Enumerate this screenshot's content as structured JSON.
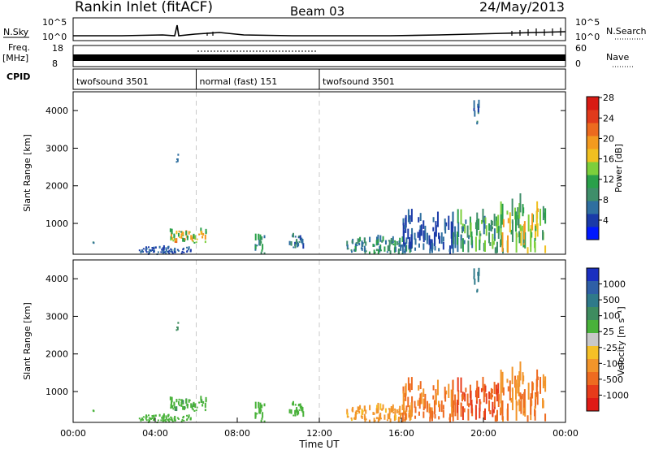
{
  "header": {
    "station": "Rankin Inlet (fitACF)",
    "beam": "Beam 03",
    "date": "24/May/2013"
  },
  "top_panel": {
    "nsky_label": "N.Sky",
    "nsearch_label": "N.Search",
    "left_ticks": [
      "10^5",
      "10^0"
    ],
    "right_ticks": [
      "10^5",
      "10^0"
    ]
  },
  "freq_panel": {
    "freq_label": "Freq.",
    "unit_label": "[MHz]",
    "left_ticks": [
      "18",
      "8"
    ],
    "nave_label": "Nave",
    "right_ticks": [
      "60",
      "0"
    ]
  },
  "cpid_panel": {
    "label": "CPID",
    "segments": [
      {
        "name": "twofsound 3501",
        "start": 0.0,
        "end": 6.0
      },
      {
        "name": "normal (fast) 151",
        "start": 6.0,
        "end": 12.0
      },
      {
        "name": "twofsound 3501",
        "start": 12.0,
        "end": 24.0
      }
    ]
  },
  "x_axis": {
    "title": "Time UT",
    "ticks": [
      "00:00",
      "04:00",
      "08:00",
      "12:00",
      "16:00",
      "20:00",
      "00:00"
    ]
  },
  "power_colorbar": {
    "title": "Power [dB]",
    "ticks": [
      "4",
      "8",
      "12",
      "16",
      "20",
      "24",
      "28"
    ],
    "colors": [
      "#0018ff",
      "#1a3aa8",
      "#2f6fa0",
      "#3f8e6a",
      "#2aa04a",
      "#7ccf3c",
      "#f0c020",
      "#f39a1f",
      "#ec6a1e",
      "#e13a1b",
      "#d81a14"
    ]
  },
  "velocity_colorbar": {
    "title": "Velocity [m s⁻¹]",
    "ticks": [
      "1000",
      "500",
      "100",
      "25",
      "-25",
      "-100",
      "-500",
      "-1000"
    ],
    "colors": [
      "#1a2fc0",
      "#2f5fa6",
      "#2f7a8a",
      "#3e8c5f",
      "#49b23a",
      "#c8c8c8",
      "#f5c027",
      "#f2952a",
      "#ee6b20",
      "#e73b1a",
      "#df1a16"
    ]
  },
  "chart_data": [
    {
      "type": "heatmap",
      "title": "",
      "xlabel": "",
      "ylabel": "Slant Range [km]",
      "xlim": [
        0,
        24
      ],
      "ylim": [
        180,
        4500
      ],
      "y_ticks": [
        1000,
        2000,
        3000,
        4000
      ],
      "colorbar_label": "Power [dB]",
      "colorbar_range": [
        0,
        32
      ],
      "dashed_vlines": [
        6,
        12
      ],
      "regions": [
        {
          "t0": 0.9,
          "t1": 1.0,
          "r0": 480,
          "r1": 560,
          "value": 8
        },
        {
          "t0": 3.2,
          "t1": 5.8,
          "r0": 180,
          "r1": 420,
          "value": 6
        },
        {
          "t0": 4.7,
          "t1": 6.5,
          "r0": 480,
          "r1": 900,
          "value": 18
        },
        {
          "t0": 5.0,
          "t1": 5.1,
          "r0": 2600,
          "r1": 2900,
          "value": 8
        },
        {
          "t0": 8.8,
          "t1": 9.3,
          "r0": 180,
          "r1": 800,
          "value": 10
        },
        {
          "t0": 10.5,
          "t1": 11.2,
          "r0": 300,
          "r1": 800,
          "value": 8
        },
        {
          "t0": 13.3,
          "t1": 16.5,
          "r0": 180,
          "r1": 700,
          "value": 10
        },
        {
          "t0": 16.0,
          "t1": 18.5,
          "r0": 180,
          "r1": 1500,
          "value": 6
        },
        {
          "t0": 18.5,
          "t1": 20.8,
          "r0": 180,
          "r1": 1400,
          "value": 12
        },
        {
          "t0": 20.8,
          "t1": 23.0,
          "r0": 200,
          "r1": 1800,
          "value": 16
        },
        {
          "t0": 19.5,
          "t1": 19.8,
          "r0": 3600,
          "r1": 4300,
          "value": 8
        }
      ]
    },
    {
      "type": "heatmap",
      "title": "",
      "xlabel": "Time UT",
      "ylabel": "Slant Range [km]",
      "xlim": [
        0,
        24
      ],
      "ylim": [
        180,
        4500
      ],
      "y_ticks": [
        1000,
        2000,
        3000,
        4000
      ],
      "colorbar_label": "Velocity [m s⁻¹]",
      "colorbar_range": [
        -1000,
        1000
      ],
      "dashed_vlines": [
        6,
        12
      ],
      "regions": [
        {
          "t0": 0.9,
          "t1": 1.0,
          "r0": 480,
          "r1": 560,
          "value": 50
        },
        {
          "t0": 3.2,
          "t1": 5.8,
          "r0": 180,
          "r1": 420,
          "value": 60
        },
        {
          "t0": 4.7,
          "t1": 6.5,
          "r0": 480,
          "r1": 900,
          "value": 80
        },
        {
          "t0": 5.0,
          "t1": 5.1,
          "r0": 2600,
          "r1": 2900,
          "value": 200
        },
        {
          "t0": 8.8,
          "t1": 9.3,
          "r0": 180,
          "r1": 800,
          "value": 60
        },
        {
          "t0": 10.5,
          "t1": 11.2,
          "r0": 300,
          "r1": 800,
          "value": 50
        },
        {
          "t0": 13.3,
          "t1": 16.5,
          "r0": 180,
          "r1": 700,
          "value": -150
        },
        {
          "t0": 16.0,
          "t1": 18.5,
          "r0": 180,
          "r1": 1500,
          "value": -300
        },
        {
          "t0": 18.5,
          "t1": 20.8,
          "r0": 180,
          "r1": 1400,
          "value": -500
        },
        {
          "t0": 20.8,
          "t1": 23.0,
          "r0": 200,
          "r1": 1800,
          "value": -250
        },
        {
          "t0": 19.5,
          "t1": 19.8,
          "r0": 3600,
          "r1": 4300,
          "value": 400
        }
      ]
    }
  ]
}
